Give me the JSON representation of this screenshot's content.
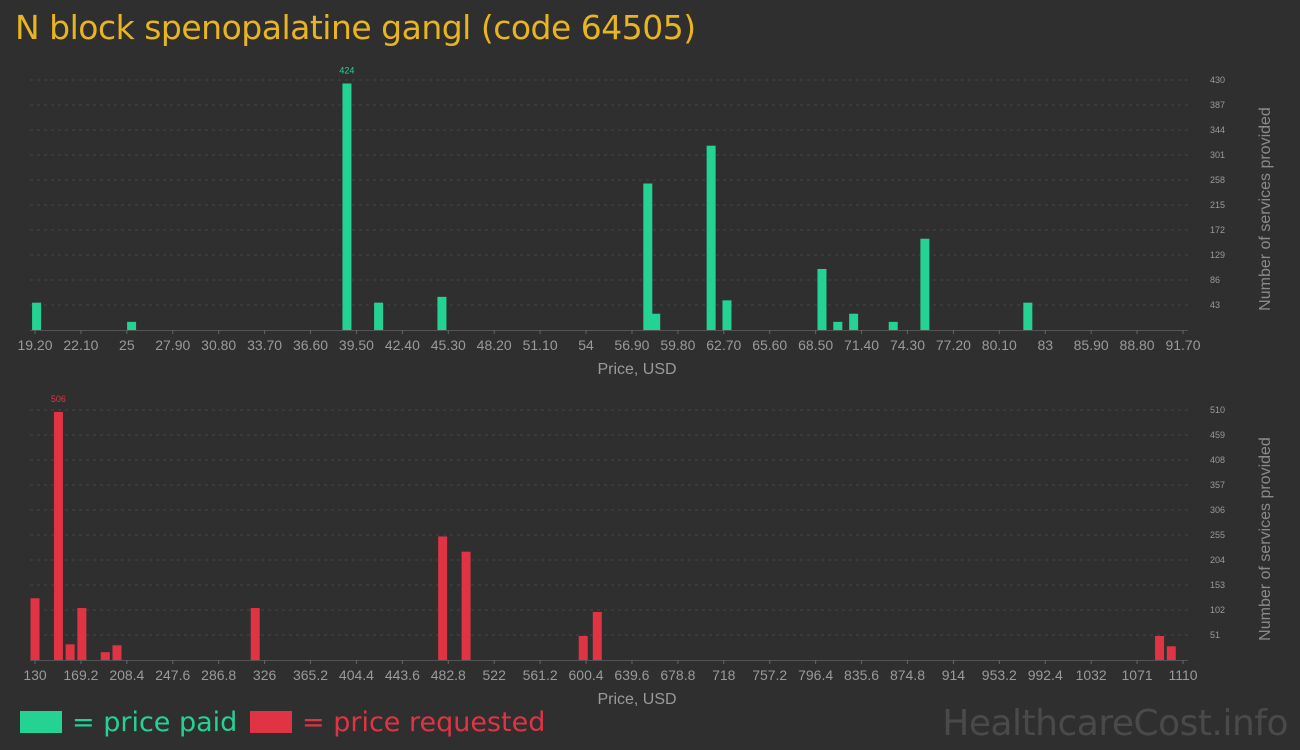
{
  "title": "N block spenopalatine gangl (code 64505)",
  "colors": {
    "paid": "#24d393",
    "requested": "#e03444",
    "background": "#2f2f2f",
    "axis_text": "#a0a0a0",
    "title": "#e8b420"
  },
  "legend": {
    "paid": "= price paid",
    "requested": "= price requested"
  },
  "watermark": "HealthcareCost.info",
  "chart_data": [
    {
      "type": "bar",
      "series": [
        {
          "name": "price paid",
          "color": "#24d393"
        }
      ],
      "xlabel": "Price, USD",
      "ylabel": "Number of services provided",
      "xlim": [
        19.2,
        91.7
      ],
      "ylim": [
        0,
        430
      ],
      "xticks": [
        "19.20",
        "22.10",
        "25",
        "27.90",
        "30.80",
        "33.70",
        "36.60",
        "39.50",
        "42.40",
        "45.30",
        "48.20",
        "51.10",
        "54",
        "56.90",
        "59.80",
        "62.70",
        "65.60",
        "68.50",
        "71.40",
        "74.30",
        "77.20",
        "80.10",
        "83",
        "85.90",
        "88.80",
        "91.70"
      ],
      "yticks": [
        "43",
        "86",
        "129",
        "172",
        "215",
        "258",
        "301",
        "344",
        "387",
        "430"
      ],
      "grid": true,
      "bars": [
        {
          "x": 19.3,
          "y": 47
        },
        {
          "x": 25.3,
          "y": 14
        },
        {
          "x": 38.9,
          "y": 424,
          "label": "424"
        },
        {
          "x": 40.9,
          "y": 47
        },
        {
          "x": 44.9,
          "y": 57
        },
        {
          "x": 57.9,
          "y": 252
        },
        {
          "x": 58.4,
          "y": 28
        },
        {
          "x": 61.9,
          "y": 317
        },
        {
          "x": 62.9,
          "y": 51
        },
        {
          "x": 68.9,
          "y": 105
        },
        {
          "x": 69.9,
          "y": 14
        },
        {
          "x": 70.9,
          "y": 28
        },
        {
          "x": 73.4,
          "y": 14
        },
        {
          "x": 75.4,
          "y": 157
        },
        {
          "x": 81.9,
          "y": 47
        }
      ]
    },
    {
      "type": "bar",
      "series": [
        {
          "name": "price requested",
          "color": "#e03444"
        }
      ],
      "xlabel": "Price, USD",
      "ylabel": "Number of services provided",
      "xlim": [
        130,
        1110
      ],
      "ylim": [
        0,
        510
      ],
      "xticks": [
        "130",
        "169.2",
        "208.4",
        "247.6",
        "286.8",
        "326",
        "365.2",
        "404.4",
        "443.6",
        "482.8",
        "522",
        "561.2",
        "600.4",
        "639.6",
        "678.8",
        "718",
        "757.2",
        "796.4",
        "835.6",
        "874.8",
        "914",
        "953.2",
        "992.4",
        "1032",
        "1071",
        "1110"
      ],
      "yticks": [
        "51",
        "102",
        "153",
        "204",
        "255",
        "306",
        "357",
        "408",
        "459",
        "510"
      ],
      "grid": true,
      "bars": [
        {
          "x": 130,
          "y": 126
        },
        {
          "x": 150,
          "y": 506,
          "label": "506"
        },
        {
          "x": 160,
          "y": 32
        },
        {
          "x": 170,
          "y": 106
        },
        {
          "x": 190,
          "y": 16
        },
        {
          "x": 200,
          "y": 30
        },
        {
          "x": 318,
          "y": 106
        },
        {
          "x": 478,
          "y": 252
        },
        {
          "x": 498,
          "y": 221
        },
        {
          "x": 598,
          "y": 49
        },
        {
          "x": 610,
          "y": 98
        },
        {
          "x": 1090,
          "y": 49
        },
        {
          "x": 1100,
          "y": 28
        }
      ]
    }
  ]
}
